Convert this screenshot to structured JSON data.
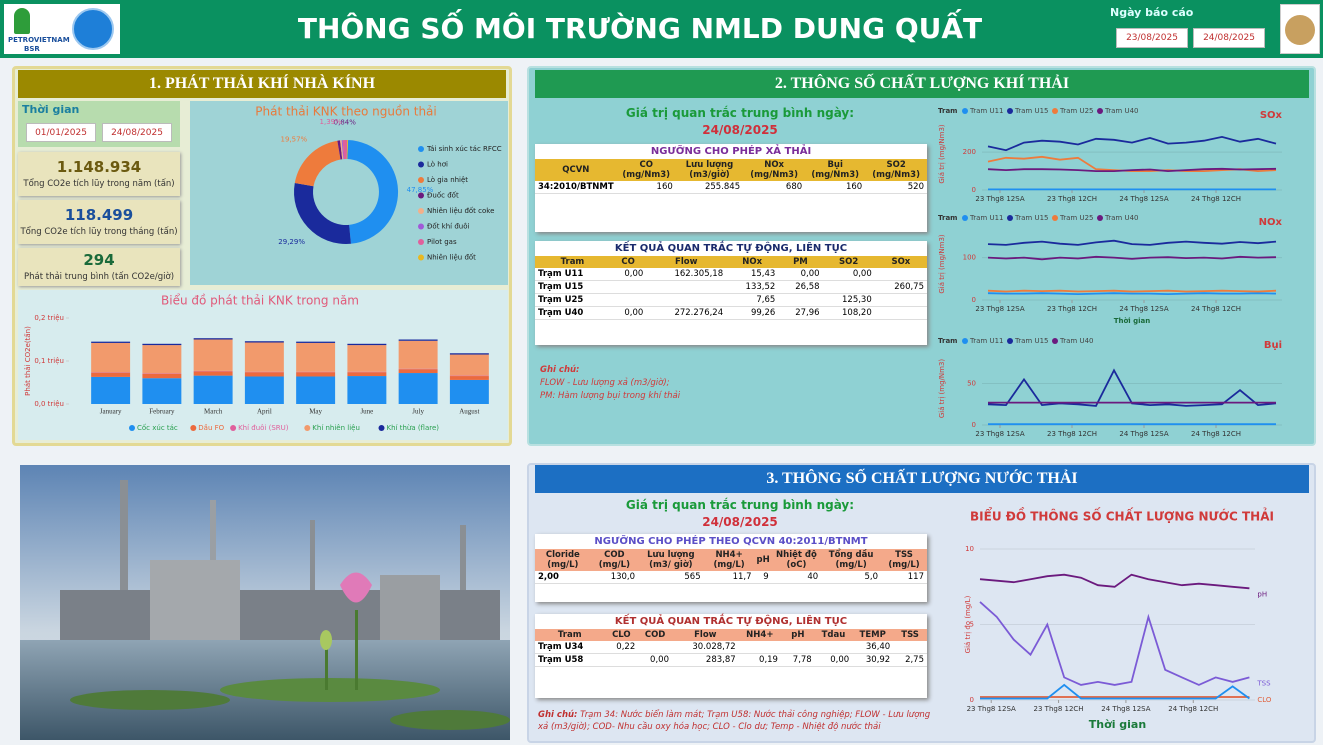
{
  "header": {
    "logo_text": "PETROVIETNAM",
    "logo_sub": "BSR",
    "title": "THÔNG SỐ MÔI TRƯỜNG NMLD DUNG QUẤT",
    "report_date_label": "Ngày báo cáo",
    "report_date_from": "23/08/2025",
    "report_date_to": "24/08/2025"
  },
  "ghg": {
    "title": "1. PHÁT THẢI KHÍ NHÀ KÍNH",
    "time_label": "Thời gian",
    "date_from": "01/01/2025",
    "date_to": "24/08/2025",
    "kpis": [
      {
        "value": "1.148.934",
        "label": "Tổng CO2e tích lũy trong năm (tấn)"
      },
      {
        "value": "118.499",
        "label": "Tổng CO2e tích lũy trong tháng (tấn)"
      },
      {
        "value": "294",
        "label": "Phát thải trung bình (tấn CO2e/giờ)"
      }
    ],
    "donut": {
      "type": "pie",
      "title": "Phát thải KNK theo nguồn thải",
      "categories": [
        "Tái sinh xúc tác RFCC",
        "Lò hơi",
        "Lò gia nhiệt",
        "Đuốc đốt",
        "Nhiên liệu đốt coke",
        "Đốt khí đuôi",
        "Pilot gas",
        "Nhiên liệu đốt"
      ],
      "values": [
        47.85,
        29.29,
        19.57,
        0.84,
        0.5,
        0.3,
        1.39,
        0.26
      ],
      "value_labels": [
        "47,85%",
        "29,29%",
        "19,57%",
        "0,84%",
        null,
        null,
        "1,39%",
        null
      ],
      "colors": [
        "#1f8ff0",
        "#1a2a9c",
        "#ee7b3c",
        "#6b1a7e",
        "#f3b08a",
        "#a05ad8",
        "#e0609c",
        "#e8b820"
      ]
    },
    "bars": {
      "type": "stacked_bar",
      "title": "Biểu đồ phát thải KNK trong năm",
      "y_label": "Phát thải CO2e(tấn)",
      "categories": [
        "January",
        "February",
        "March",
        "April",
        "May",
        "June",
        "July",
        "August"
      ],
      "ylim": [
        0,
        200000
      ],
      "yticks": [
        {
          "value": 0,
          "label": "0,0 triệu"
        },
        {
          "value": 100000,
          "label": "0,1 triệu"
        },
        {
          "value": 200000,
          "label": "0,2 triệu"
        }
      ],
      "series": [
        {
          "name": "Cốc xúc tác",
          "color": "#1f8ff0",
          "values": [
            63000,
            60000,
            66000,
            64000,
            64000,
            65000,
            72000,
            56000
          ]
        },
        {
          "name": "Dầu FO",
          "color": "#ec6a3e",
          "values": [
            10000,
            10000,
            10000,
            10000,
            10000,
            9000,
            9000,
            9000
          ]
        },
        {
          "name": "Khí đuôi (SRU)",
          "color": "#e0609c",
          "values": [
            1000,
            1000,
            1000,
            1000,
            1000,
            1000,
            1000,
            1000
          ]
        },
        {
          "name": "Khí nhiên liệu",
          "color": "#f29a6c",
          "values": [
            68000,
            66000,
            73000,
            68000,
            67000,
            62000,
            65000,
            49000
          ]
        },
        {
          "name": "Khí thừa (flare)",
          "color": "#1a2a9c",
          "values": [
            3000,
            3000,
            3000,
            3000,
            3000,
            3000,
            3000,
            3000
          ]
        }
      ]
    }
  },
  "gas": {
    "title": "2. THÔNG SỐ CHẤT LƯỢNG KHÍ THẢI",
    "avg_label": "Giá trị quan trắc trung bình ngày:",
    "avg_date": "24/08/2025",
    "limit_table": {
      "title": "NGƯỠNG CHO PHÉP XẢ THẢI",
      "columns": [
        "QCVN",
        "CO (mg/Nm3)",
        "Lưu lượng (m3/giờ)",
        "NOx (mg/Nm3)",
        "Bụi (mg/Nm3)",
        "SO2 (mg/Nm3)"
      ],
      "rows": [
        [
          "34:2010/BTNMT",
          "160",
          "255.845",
          "680",
          "160",
          "520"
        ]
      ]
    },
    "result_table": {
      "title": "KẾT QUẢ QUAN TRẮC TỰ ĐỘNG, LIÊN TỤC",
      "columns": [
        "Tram",
        "CO",
        "Flow",
        "NOx",
        "PM",
        "SO2",
        "SOx"
      ],
      "rows": [
        [
          "Trạm U11",
          "0,00",
          "162.305,18",
          "15,43",
          "0,00",
          "0,00",
          null
        ],
        [
          "Trạm U15",
          null,
          null,
          "133,52",
          "26,58",
          null,
          "260,75"
        ],
        [
          "Trạm U25",
          null,
          null,
          "7,65",
          null,
          "125,30",
          null
        ],
        [
          "Trạm U40",
          "0,00",
          "272.276,24",
          "99,26",
          "27,96",
          "108,20",
          null
        ]
      ]
    },
    "notes": [
      "Ghi chú:",
      "FLOW - Lưu lượng xả (m3/giờ);",
      "PM: Hàm lượng bụi trong khí thải"
    ],
    "charts": [
      {
        "type": "line",
        "title": "SOx",
        "legend_title": "Tram",
        "y_label": "Giá trị (mg/Nm3)",
        "x": [
          -2,
          1,
          4,
          7,
          10,
          13,
          16,
          19,
          22,
          25,
          28,
          31,
          34,
          37,
          40,
          43,
          46
        ],
        "xlim": [
          -3,
          47
        ],
        "xticks": [
          {
            "value": 0,
            "label": "23 Thg8 12SA"
          },
          {
            "value": 12,
            "label": "23 Thg8 12CH"
          },
          {
            "value": 24,
            "label": "24 Thg8 12SA"
          },
          {
            "value": 36,
            "label": "24 Thg8 12CH"
          }
        ],
        "ylim": [
          0,
          380
        ],
        "yticks": [
          0,
          200
        ],
        "series": [
          {
            "name": "Tram U11",
            "color": "#1f8ff0",
            "values": [
              3,
              3,
              3,
              3,
              3,
              3,
              3,
              3,
              3,
              3,
              3,
              3,
              3,
              3,
              3,
              3,
              3
            ]
          },
          {
            "name": "Tram U15",
            "color": "#1a2a9c",
            "values": [
              230,
              210,
              250,
              260,
              255,
              240,
              270,
              265,
              250,
              275,
              245,
              250,
              260,
              280,
              255,
              270,
              245
            ]
          },
          {
            "name": "Tram U25",
            "color": "#ee7b3c",
            "values": [
              150,
              170,
              165,
              175,
              160,
              170,
              110,
              105,
              100,
              100,
              105,
              100,
              100,
              105,
              110,
              100,
              105
            ]
          },
          {
            "name": "Tram U40",
            "color": "#6b1a7e",
            "values": [
              110,
              105,
              110,
              110,
              108,
              105,
              100,
              100,
              105,
              108,
              100,
              105,
              110,
              112,
              108,
              110,
              112
            ]
          }
        ]
      },
      {
        "type": "line",
        "title": "NOx",
        "legend_title": "Tram",
        "y_label": "Giá trị (mg/Nm3)",
        "x_label": "Thời gian",
        "x": [
          -2,
          1,
          4,
          7,
          10,
          13,
          16,
          19,
          22,
          25,
          28,
          31,
          34,
          37,
          40,
          43,
          46
        ],
        "xlim": [
          -3,
          47
        ],
        "xticks": [
          {
            "value": 0,
            "label": "23 Thg8 12SA"
          },
          {
            "value": 12,
            "label": "23 Thg8 12CH"
          },
          {
            "value": 24,
            "label": "24 Thg8 12SA"
          },
          {
            "value": 36,
            "label": "24 Thg8 12CH"
          }
        ],
        "ylim": [
          0,
          170
        ],
        "yticks": [
          0,
          100
        ],
        "series": [
          {
            "name": "Tram U11",
            "color": "#1f8ff0",
            "values": [
              16,
              15,
              15,
              16,
              15,
              14,
              15,
              16,
              15,
              15,
              14,
              15,
              16,
              15,
              15,
              16,
              15
            ]
          },
          {
            "name": "Tram U15",
            "color": "#1a2a9c",
            "values": [
              132,
              130,
              135,
              138,
              133,
              130,
              136,
              140,
              132,
              130,
              135,
              138,
              135,
              133,
              137,
              134,
              138
            ]
          },
          {
            "name": "Tram U25",
            "color": "#ee7b3c",
            "values": [
              22,
              20,
              22,
              21,
              22,
              20,
              21,
              22,
              20,
              21,
              22,
              20,
              21,
              22,
              21,
              20,
              22
            ]
          },
          {
            "name": "Tram U40",
            "color": "#6b1a7e",
            "values": [
              100,
              98,
              100,
              96,
              100,
              98,
              102,
              100,
              97,
              100,
              101,
              99,
              100,
              98,
              102,
              100,
              101
            ]
          }
        ]
      },
      {
        "type": "line",
        "title": "Bụi",
        "legend_title": "Tram",
        "y_label": "Giá trị (mg/Nm3)",
        "x": [
          -2,
          1,
          4,
          7,
          10,
          13,
          16,
          19,
          22,
          25,
          28,
          31,
          34,
          37,
          40,
          43,
          46
        ],
        "xlim": [
          -3,
          47
        ],
        "xticks": [
          {
            "value": 0,
            "label": "23 Thg8 12SA"
          },
          {
            "value": 12,
            "label": "23 Thg8 12CH"
          },
          {
            "value": 24,
            "label": "24 Thg8 12SA"
          },
          {
            "value": 36,
            "label": "24 Thg8 12CH"
          }
        ],
        "ylim": [
          0,
          88
        ],
        "yticks": [
          0,
          50
        ],
        "series": [
          {
            "name": "Tram U11",
            "color": "#1f8ff0",
            "values": [
              1,
              1,
              1,
              1,
              1,
              1,
              1,
              1,
              1,
              1,
              1,
              1,
              1,
              1,
              1,
              1,
              1
            ]
          },
          {
            "name": "Tram U15",
            "color": "#1a2a9c",
            "values": [
              25,
              24,
              55,
              24,
              26,
              25,
              23,
              66,
              26,
              24,
              25,
              23,
              24,
              25,
              42,
              24,
              26
            ]
          },
          {
            "name": "Tram U40",
            "color": "#6b1a7e",
            "values": [
              27,
              27,
              27,
              27,
              27,
              27,
              27,
              27,
              27,
              27,
              27,
              27,
              27,
              27,
              27,
              27,
              27
            ]
          }
        ]
      }
    ]
  },
  "water": {
    "title": "3. THÔNG SỐ CHẤT LƯỢNG NƯỚC THẢI",
    "avg_label": "Giá trị quan trắc trung bình ngày:",
    "avg_date": "24/08/2025",
    "limit_table": {
      "title": "NGƯỠNG CHO PHÉP THEO QCVN 40:2011/BTNMT",
      "columns": [
        "Cloride (mg/L)",
        "COD (mg/L)",
        "Lưu lượng (m3/ giờ)",
        "NH4+ (mg/L)",
        "pH",
        "Nhiệt độ (oC)",
        "Tổng dầu (mg/L)",
        "TSS (mg/L)"
      ],
      "rows": [
        [
          "2,00",
          "130,0",
          "565",
          "11,7",
          "9",
          "40",
          "5,0",
          "117"
        ]
      ]
    },
    "result_table": {
      "title": "KẾT QUẢ QUAN TRẮC TỰ ĐỘNG, LIÊN TỤC",
      "columns": [
        "Tram",
        "CLO",
        "COD",
        "Flow",
        "NH4+",
        "pH",
        "Tdau",
        "TEMP",
        "TSS"
      ],
      "rows": [
        [
          "Trạm U34",
          "0,22",
          null,
          "30.028,72",
          null,
          null,
          null,
          "36,40",
          null
        ],
        [
          "Trạm U58",
          null,
          "0,00",
          "283,87",
          "0,19",
          "7,78",
          "0,00",
          "30,92",
          "2,75"
        ]
      ]
    },
    "note_label": "Ghi chú:",
    "note": "Trạm 34: Nước biển làm mát; Trạm U58: Nước thải công nghiệp; FLOW - Lưu lượng xả (m3/giờ); COD- Nhu cầu oxy hóa học; CLO - Clo dư; Temp - Nhiệt độ nước thải",
    "chart": {
      "type": "line",
      "title": "BIỂU ĐỒ THÔNG SỐ CHẤT LƯỢNG NƯỚC THẢI",
      "y_label": "Giá trị đo (mg/L)",
      "x_label": "Thời gian",
      "x": [
        -2,
        1,
        4,
        7,
        10,
        13,
        16,
        19,
        22,
        25,
        28,
        31,
        34,
        37,
        40,
        43,
        46
      ],
      "xlim": [
        -2,
        47
      ],
      "xticks": [
        {
          "value": 0,
          "label": "23 Thg8 12SA"
        },
        {
          "value": 12,
          "label": "23 Thg8 12CH"
        },
        {
          "value": 24,
          "label": "24 Thg8 12SA"
        },
        {
          "value": 36,
          "label": "24 Thg8 12CH"
        }
      ],
      "ylim": [
        0,
        10
      ],
      "yticks": [
        0,
        5,
        10
      ],
      "series": [
        {
          "name": "pH",
          "color": "#6b1a7e",
          "values": [
            8,
            7.9,
            7.8,
            8,
            8.2,
            8.3,
            8.1,
            7.6,
            7.5,
            8.3,
            8,
            7.8,
            7.6,
            7.7,
            7.6,
            7.5,
            7.4
          ]
        },
        {
          "name": "TSS",
          "color": "#7b5bd6",
          "values": [
            6.5,
            5.5,
            4,
            3,
            5,
            1.5,
            1,
            1.2,
            1,
            1.2,
            5.5,
            2,
            1.5,
            1,
            1.5,
            1.2,
            1.5
          ]
        },
        {
          "name": "CLO",
          "color": "#e0603c",
          "values": [
            0.2,
            0.2,
            0.2,
            0.2,
            0.2,
            0.2,
            0.2,
            0.2,
            0.2,
            0.2,
            0.2,
            0.2,
            0.2,
            0.2,
            0.2,
            0.2,
            0.2
          ]
        },
        {
          "name": null,
          "color": "#1f8ff0",
          "values": [
            0.1,
            0.1,
            0.1,
            0.1,
            0.1,
            1,
            0.1,
            0.1,
            0.1,
            0.1,
            0.1,
            0.1,
            0.1,
            0.1,
            0.1,
            0.9,
            0.1
          ]
        }
      ]
    }
  }
}
